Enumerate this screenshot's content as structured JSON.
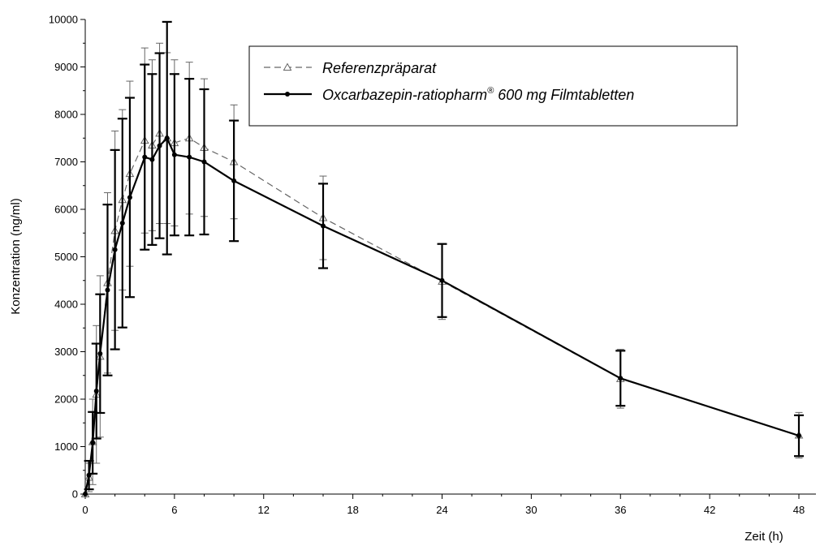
{
  "chart_data": {
    "type": "line",
    "xlabel": "Zeit (h)",
    "ylabel": "Konzentration (ng/ml)",
    "xlim": [
      0,
      48
    ],
    "ylim": [
      0,
      10000
    ],
    "xticks": [
      "0",
      "6",
      "12",
      "18",
      "24",
      "30",
      "36",
      "42",
      "48"
    ],
    "yticks": [
      "0",
      "1000",
      "2000",
      "3000",
      "4000",
      "5000",
      "6000",
      "7000",
      "8000",
      "9000",
      "10000"
    ],
    "grid": false,
    "legend_position": "top-right",
    "series": [
      {
        "name": "Referenzpräparat",
        "style": "dashed",
        "marker": "open-triangle",
        "color": "#666666",
        "x": [
          0,
          0.25,
          0.5,
          0.75,
          1,
          1.5,
          2,
          2.5,
          3,
          4,
          4.5,
          5,
          5.5,
          6,
          7,
          8,
          10,
          16,
          24,
          36,
          48
        ],
        "y": [
          0,
          350,
          1100,
          2100,
          2900,
          4450,
          5550,
          6200,
          6750,
          7450,
          7350,
          7600,
          7500,
          7400,
          7500,
          7300,
          7000,
          5820,
          4480,
          2430,
          1240
        ],
        "err": [
          0,
          300,
          900,
          1450,
          1700,
          1900,
          2100,
          1900,
          1950,
          1950,
          1800,
          1900,
          1800,
          1750,
          1600,
          1450,
          1200,
          880,
          800,
          620,
          480
        ]
      },
      {
        "name": "Oxcarbazepin-ratiopharm",
        "name_sup": "®",
        "name_suffix": " 600 mg Filmtabletten",
        "style": "solid",
        "marker": "filled-circle",
        "color": "#000000",
        "x": [
          0,
          0.25,
          0.5,
          0.75,
          1,
          1.5,
          2,
          2.5,
          3,
          4,
          4.5,
          5,
          5.5,
          6,
          7,
          8,
          10,
          16,
          24,
          36,
          48
        ],
        "y": [
          0,
          400,
          1080,
          2170,
          2960,
          4300,
          5150,
          5710,
          6250,
          7100,
          7050,
          7340,
          7500,
          7150,
          7100,
          7000,
          6600,
          5650,
          4500,
          2440,
          1230
        ],
        "err": [
          0,
          300,
          650,
          1000,
          1250,
          1800,
          2100,
          2200,
          2100,
          1950,
          1800,
          1950,
          2450,
          1700,
          1650,
          1530,
          1270,
          890,
          770,
          580,
          430
        ]
      }
    ]
  }
}
